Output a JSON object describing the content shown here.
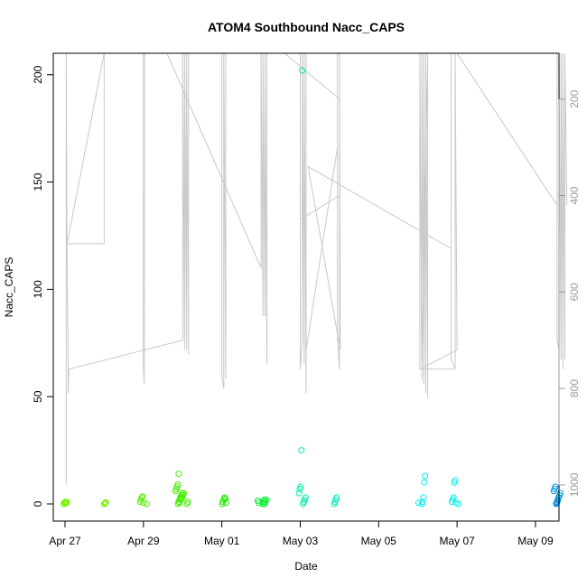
{
  "chart_data": {
    "type": "scatter",
    "title": "ATOM4 Southbound Nacc_CAPS",
    "xlabel": "Date",
    "ylabel": "Nacc_CAPS",
    "x_ticks": [
      "Apr 27",
      "Apr 29",
      "May 01",
      "May 03",
      "May 05",
      "May 07",
      "May 09"
    ],
    "xlim_days": [
      26.7,
      39.6
    ],
    "ylim": [
      -8,
      210
    ],
    "y_ticks": [
      0,
      50,
      100,
      150,
      200
    ],
    "y2_ticks": [
      200,
      400,
      600,
      800,
      1000
    ],
    "y2lim_reversed": [
      105,
      1075
    ],
    "grid": false,
    "legend": "none",
    "colors": {
      "line": "#c8c8c8",
      "axis": "#000000",
      "right_axis": "#9a9a9a"
    },
    "scatter_groups": [
      {
        "day": 27.05,
        "color": "#77ee00",
        "values": [
          0,
          0.5,
          1,
          0.3,
          0.8
        ]
      },
      {
        "day": 28.0,
        "color": "#77ee00",
        "values": [
          0,
          0.4,
          0.7
        ]
      },
      {
        "day": 29.0,
        "color": "#55ee00",
        "values": [
          0,
          1,
          2,
          3,
          3.5,
          0.5
        ]
      },
      {
        "day": 29.9,
        "color": "#44ee00",
        "values": [
          0,
          1,
          2,
          3,
          4,
          5,
          6,
          7,
          8,
          9,
          14,
          0.5,
          2.5
        ]
      },
      {
        "day": 30.05,
        "color": "#44ee00",
        "values": [
          0,
          1,
          2,
          3,
          4,
          5
        ]
      },
      {
        "day": 31.05,
        "color": "#22ee00",
        "values": [
          0,
          1,
          2,
          3,
          2.5,
          0.5
        ]
      },
      {
        "day": 32.0,
        "color": "#00ee22",
        "values": [
          0,
          1,
          2,
          1.5,
          0.5
        ]
      },
      {
        "day": 32.15,
        "color": "#00ee33",
        "values": [
          0,
          1,
          2
        ]
      },
      {
        "day": 33.05,
        "color": "#00eeaa",
        "values": [
          0,
          1,
          2,
          3,
          5,
          7,
          8,
          25,
          202
        ]
      },
      {
        "day": 33.95,
        "color": "#00eebb",
        "values": [
          0,
          1,
          2,
          3
        ]
      },
      {
        "day": 36.1,
        "color": "#00eeee",
        "values": [
          0,
          1,
          3,
          10,
          13,
          0.5
        ]
      },
      {
        "day": 36.95,
        "color": "#00eeee",
        "values": [
          0,
          1,
          2,
          3,
          10,
          11,
          0.5
        ]
      },
      {
        "day": 39.55,
        "color": "#0099ee",
        "values": [
          0,
          1,
          2,
          3,
          4,
          5,
          6,
          7,
          8,
          0.3,
          0.6,
          1.5
        ]
      }
    ],
    "right_axis_line": {
      "points": [
        [
          27.03,
          1000
        ],
        [
          27.03,
          105
        ],
        [
          27.05,
          500
        ],
        [
          28.0,
          500
        ],
        [
          28.0,
          105
        ],
        [
          27.05,
          500
        ],
        [
          27.08,
          760
        ],
        [
          27.08,
          810
        ],
        [
          27.1,
          760
        ],
        [
          30.0,
          700
        ],
        [
          30.0,
          105
        ],
        [
          30.05,
          720
        ],
        [
          30.05,
          105
        ],
        [
          30.1,
          720
        ],
        [
          30.1,
          105
        ],
        [
          30.15,
          730
        ],
        [
          30.15,
          105
        ],
        [
          29.0,
          105
        ],
        [
          29.0,
          760
        ],
        [
          29.02,
          790
        ],
        [
          29.03,
          105
        ],
        [
          29.6,
          105
        ],
        [
          32.0,
          550
        ],
        [
          32.0,
          105
        ],
        [
          32.05,
          650
        ],
        [
          32.05,
          105
        ],
        [
          32.1,
          650
        ],
        [
          32.1,
          105
        ],
        [
          32.15,
          750
        ],
        [
          32.15,
          105
        ],
        [
          31.0,
          105
        ],
        [
          31.0,
          780
        ],
        [
          31.05,
          800
        ],
        [
          31.05,
          105
        ],
        [
          31.1,
          780
        ],
        [
          31.1,
          105
        ],
        [
          32.6,
          105
        ],
        [
          34.0,
          200
        ],
        [
          34.0,
          105
        ],
        [
          34.0,
          400
        ],
        [
          33.0,
          450
        ],
        [
          33.0,
          105
        ],
        [
          33.0,
          760
        ],
        [
          33.05,
          700
        ],
        [
          33.05,
          105
        ],
        [
          33.1,
          750
        ],
        [
          33.1,
          105
        ],
        [
          33.15,
          810
        ],
        [
          33.15,
          105
        ],
        [
          33.15,
          720
        ],
        [
          33.95,
          300
        ],
        [
          33.95,
          105
        ],
        [
          33.95,
          700
        ],
        [
          34.0,
          760
        ],
        [
          34.0,
          105
        ],
        [
          34.02,
          720
        ],
        [
          33.2,
          340
        ],
        [
          36.85,
          510
        ],
        [
          36.85,
          105
        ],
        [
          36.85,
          740
        ],
        [
          36.95,
          760
        ],
        [
          36.95,
          105
        ],
        [
          37.0,
          720
        ],
        [
          36.05,
          760
        ],
        [
          36.05,
          105
        ],
        [
          36.1,
          780
        ],
        [
          36.1,
          105
        ],
        [
          36.15,
          790
        ],
        [
          36.15,
          105
        ],
        [
          36.2,
          810
        ],
        [
          36.2,
          105
        ],
        [
          36.25,
          820
        ],
        [
          36.25,
          105
        ],
        [
          36.1,
          760
        ],
        [
          36.95,
          760
        ],
        [
          36.95,
          105
        ],
        [
          37.0,
          105
        ],
        [
          39.55,
          420
        ],
        [
          39.55,
          105
        ],
        [
          39.55,
          700
        ],
        [
          39.6,
          720
        ],
        [
          39.6,
          105
        ],
        [
          39.65,
          740
        ],
        [
          39.65,
          105
        ],
        [
          39.7,
          760
        ],
        [
          39.7,
          105
        ],
        [
          39.75,
          740
        ],
        [
          39.75,
          105
        ],
        [
          39.8,
          420
        ]
      ]
    }
  }
}
